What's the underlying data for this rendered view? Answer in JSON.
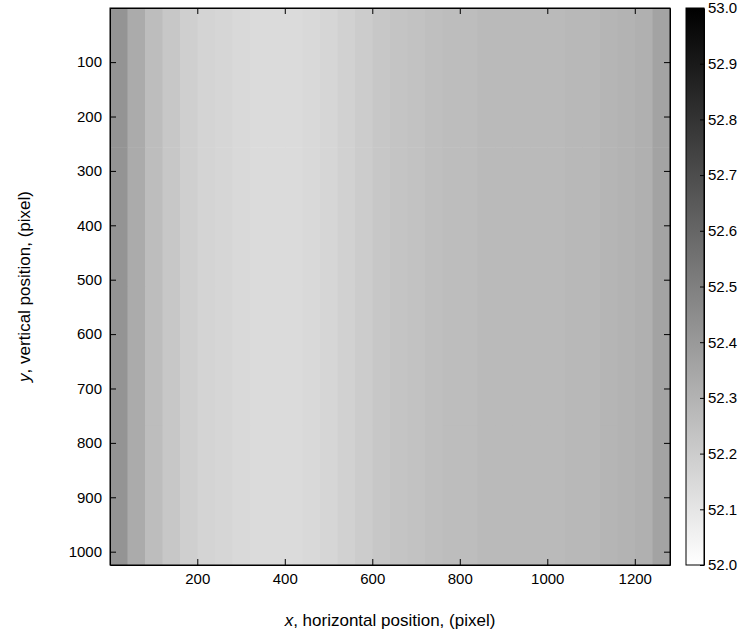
{
  "chart_data": {
    "type": "heatmap",
    "x_label": "x, horizontal position, (pixel)",
    "y_label": "y, vertical position, (pixel)",
    "xlim": [
      0.5,
      1280.5
    ],
    "ylim": [
      0.5,
      1024.5
    ],
    "xticks": [
      200,
      400,
      600,
      800,
      1000,
      1200
    ],
    "yticks": [
      100,
      200,
      300,
      400,
      500,
      600,
      700,
      800,
      900,
      1000
    ],
    "x_edges": [
      0.5,
      40.5,
      80.5,
      120.5,
      160.5,
      200.5,
      240.5,
      280.5,
      320.5,
      360.5,
      400.5,
      440.5,
      480.5,
      520.5,
      560.5,
      600.5,
      640.5,
      680.5,
      720.5,
      760.5,
      800.5,
      840.5,
      880.5,
      920.5,
      960.5,
      1000.5,
      1040.5,
      1080.5,
      1120.5,
      1160.5,
      1200.5,
      1240.5,
      1280.5
    ],
    "y_edges": [
      0.5,
      256.5,
      512.5,
      768.5,
      1024.5
    ],
    "cells": [
      [
        52.42,
        52.33,
        52.26,
        52.22,
        52.19,
        52.17,
        52.16,
        52.15,
        52.14,
        52.14,
        52.14,
        52.15,
        52.16,
        52.18,
        52.2,
        52.22,
        52.23,
        52.24,
        52.25,
        52.26,
        52.26,
        52.27,
        52.27,
        52.27,
        52.27,
        52.27,
        52.28,
        52.28,
        52.29,
        52.3,
        52.31,
        52.36
      ],
      [
        52.42,
        52.33,
        52.26,
        52.22,
        52.19,
        52.17,
        52.16,
        52.15,
        52.14,
        52.14,
        52.14,
        52.15,
        52.16,
        52.18,
        52.2,
        52.22,
        52.23,
        52.24,
        52.25,
        52.26,
        52.26,
        52.27,
        52.27,
        52.27,
        52.27,
        52.27,
        52.28,
        52.28,
        52.29,
        52.3,
        52.31,
        52.36
      ],
      [
        52.42,
        52.33,
        52.26,
        52.22,
        52.19,
        52.17,
        52.16,
        52.15,
        52.14,
        52.14,
        52.14,
        52.15,
        52.16,
        52.18,
        52.2,
        52.22,
        52.23,
        52.24,
        52.25,
        52.26,
        52.26,
        52.27,
        52.27,
        52.27,
        52.27,
        52.27,
        52.28,
        52.28,
        52.29,
        52.3,
        52.31,
        52.36
      ],
      [
        52.42,
        52.33,
        52.26,
        52.22,
        52.19,
        52.17,
        52.16,
        52.15,
        52.14,
        52.14,
        52.14,
        52.15,
        52.16,
        52.18,
        52.2,
        52.22,
        52.23,
        52.24,
        52.25,
        52.26,
        52.26,
        52.27,
        52.27,
        52.27,
        52.27,
        52.27,
        52.28,
        52.28,
        52.29,
        52.3,
        52.31,
        52.36
      ]
    ],
    "colorbar_range": [
      52,
      53
    ],
    "colorbar_ticks": [
      {
        "value": 52,
        "label": "52.0"
      },
      52.1,
      52.2,
      52.3,
      52.4,
      52.5,
      52.6,
      52.7,
      52.8,
      52.9,
      {
        "value": 53,
        "label": "53.0"
      }
    ]
  }
}
